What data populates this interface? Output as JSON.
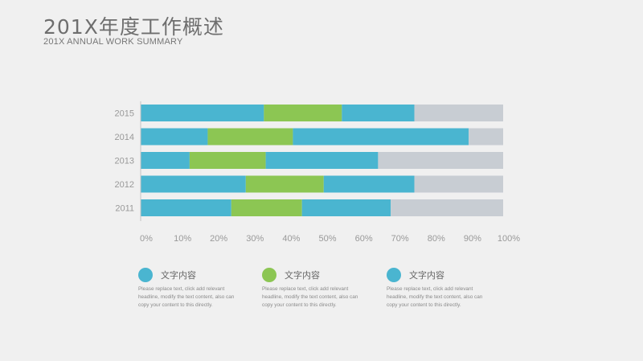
{
  "header": {
    "title": "201X年度工作概述",
    "subtitle": "201X ANNUAL WORK SUMMARY"
  },
  "colors": {
    "teal": "#4ab5d0",
    "green": "#8cc653",
    "gray": "#c8cdd3",
    "axis_text": "#999999"
  },
  "chart_data": {
    "type": "bar",
    "orientation": "horizontal",
    "stacked": true,
    "categories": [
      "2015",
      "2014",
      "2013",
      "2012",
      "2011"
    ],
    "series": [
      {
        "color": "#4ab5d0",
        "values": [
          34,
          18.5,
          13.5,
          29,
          25
        ]
      },
      {
        "color": "#8cc653",
        "values": [
          21.5,
          23.5,
          21,
          21.5,
          19.5
        ]
      },
      {
        "color": "#4ab5d0",
        "values": [
          20,
          48.5,
          31,
          25,
          24.5
        ]
      },
      {
        "color": "#c8cdd3",
        "values": [
          24.5,
          9.5,
          34.5,
          24.5,
          31
        ]
      }
    ],
    "xlim": [
      0,
      100
    ],
    "xticks": [
      "0%",
      "10%",
      "20%",
      "30%",
      "40%",
      "50%",
      "60%",
      "70%",
      "80%",
      "90%",
      "100%"
    ],
    "grid": false,
    "legend": "bottom"
  },
  "legend": [
    {
      "icon": "teal-circle-icon",
      "color": "#4ab5d0",
      "title": "文字内容",
      "desc": "Please replace text, click add relevant headline, modify the text content, also can copy your content to this directly."
    },
    {
      "icon": "green-circle-icon",
      "color": "#8cc653",
      "title": "文字内容",
      "desc": "Please replace text, click add relevant headline, modify the text content, also can copy your content to this directly."
    },
    {
      "icon": "teal-circle-icon",
      "color": "#4ab5d0",
      "title": "文字内容",
      "desc": "Please replace text, click add relevant headline, modify the text content, also can copy your content to this directly."
    }
  ]
}
